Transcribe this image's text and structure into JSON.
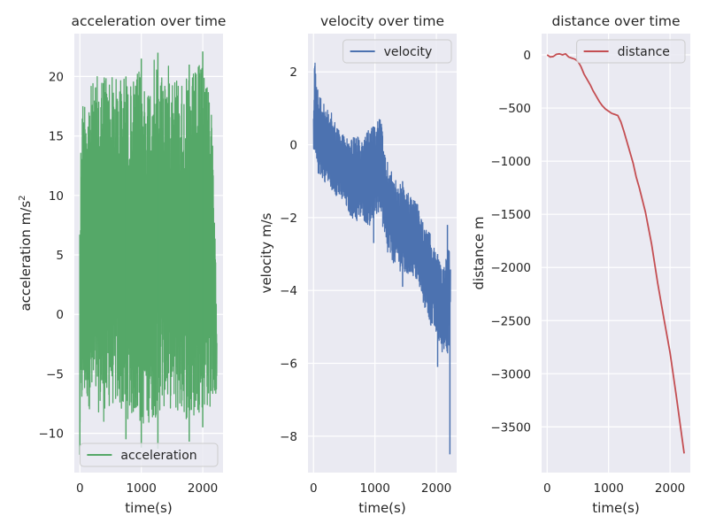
{
  "chart_data": [
    {
      "type": "line",
      "title": "acceleration over time",
      "xlabel": "time(s)",
      "ylabel": "acceleration m/s",
      "ylabel_superscript": "2",
      "xlim": [
        -90,
        2330
      ],
      "ylim": [
        -13.3,
        23.6
      ],
      "xticks": [
        0,
        1000,
        2000
      ],
      "xtick_labels": [
        "0",
        "1000",
        "2000"
      ],
      "yticks": [
        -10,
        -5,
        0,
        5,
        10,
        15,
        20
      ],
      "ytick_labels": [
        "−10",
        "−5",
        "0",
        "5",
        "10",
        "15",
        "20"
      ],
      "grid": true,
      "legend": "lower right",
      "series": [
        {
          "name": "acceleration",
          "color": "#55a868",
          "envelope": {
            "x": [
              0,
              20,
              50,
              100,
              200,
              300,
              400,
              500,
              600,
              700,
              800,
              900,
              1000,
              1100,
              1200,
              1300,
              1400,
              1500,
              1600,
              1700,
              1800,
              1900,
              2000,
              2100,
              2150,
              2180,
              2200,
              2230
            ],
            "upper": [
              6.7,
              18.5,
              19.0,
              19.6,
              20.0,
              20.8,
              21.5,
              21.0,
              20.5,
              21.0,
              19.8,
              20.6,
              21.5,
              20.0,
              22.1,
              21.6,
              21.3,
              21.9,
              20.8,
              20.3,
              20.6,
              21.3,
              22.1,
              21.0,
              16.8,
              11.0,
              7.0,
              0.0
            ],
            "lower": [
              -11.6,
              -9.6,
              -8.5,
              -8.0,
              -9.0,
              -8.8,
              -9.8,
              -8.2,
              -8.5,
              -9.0,
              -9.5,
              -9.2,
              -10.2,
              -9.8,
              -9.5,
              -8.9,
              -8.3,
              -8.7,
              -9.2,
              -9.0,
              -10.5,
              -9.0,
              -8.6,
              -8.6,
              -8.2,
              -7.5,
              -6.8,
              -7.3
            ]
          },
          "spikes": [
            {
              "x": 0,
              "low": -11.8,
              "high": 6.7
            },
            {
              "x": 750,
              "low": -10.5,
              "high": 20.0
            },
            {
              "x": 1000,
              "low": -11.2,
              "high": 21.5
            },
            {
              "x": 1270,
              "low": -11.3,
              "high": 22.0
            },
            {
              "x": 1780,
              "low": -10.7,
              "high": 21.0
            },
            {
              "x": 2000,
              "low": -9.5,
              "high": 22.1
            }
          ]
        }
      ]
    },
    {
      "type": "line",
      "title": "velocity over time",
      "xlabel": "time(s)",
      "ylabel": "velocity m/s",
      "xlim": [
        -90,
        2330
      ],
      "ylim": [
        -9.0,
        3.05
      ],
      "xticks": [
        0,
        1000,
        2000
      ],
      "xtick_labels": [
        "0",
        "1000",
        "2000"
      ],
      "yticks": [
        -8,
        -6,
        -4,
        -2,
        0,
        2
      ],
      "ytick_labels": [
        "−8",
        "−6",
        "−4",
        "−2",
        "0",
        "2"
      ],
      "grid": true,
      "legend": "upper right",
      "series": [
        {
          "name": "velocity",
          "color": "#4c72b0",
          "envelope": {
            "x": [
              0,
              20,
              40,
              100,
              200,
              300,
              400,
              500,
              600,
              700,
              800,
              900,
              1000,
              1050,
              1100,
              1150,
              1200,
              1300,
              1400,
              1500,
              1600,
              1700,
              1800,
              1900,
              2000,
              2100,
              2150,
              2200,
              2230
            ],
            "upper": [
              1.3,
              2.5,
              2.0,
              1.4,
              1.1,
              0.9,
              0.5,
              0.3,
              0.2,
              0.3,
              0.1,
              0.5,
              0.6,
              0.8,
              0.9,
              -0.2,
              -0.4,
              -0.8,
              -1.0,
              -1.2,
              -1.4,
              -1.6,
              -2.2,
              -2.4,
              -2.9,
              -3.4,
              -3.0,
              -2.4,
              -3.3
            ],
            "lower": [
              -0.5,
              -0.7,
              -0.8,
              -0.9,
              -1.1,
              -1.3,
              -1.5,
              -1.7,
              -2.0,
              -2.2,
              -2.1,
              -2.3,
              -2.1,
              -2.0,
              -1.9,
              -2.8,
              -3.1,
              -3.3,
              -3.5,
              -3.7,
              -3.6,
              -3.9,
              -4.5,
              -5.0,
              -5.3,
              -5.8,
              -5.6,
              -5.9,
              -4.5
            ]
          },
          "spikes": [
            {
              "x": 980,
              "low": -2.7,
              "high": 0.5
            },
            {
              "x": 1450,
              "low": -3.9,
              "high": -1.0
            },
            {
              "x": 2020,
              "low": -6.1,
              "high": -3.0
            },
            {
              "x": 2180,
              "low": -5.5,
              "high": -2.2
            },
            {
              "x": 2220,
              "low": -8.5,
              "high": -3.5
            }
          ]
        }
      ]
    },
    {
      "type": "line",
      "title": "distance over time",
      "xlabel": "time(s)",
      "ylabel": "distance m",
      "xlim": [
        -90,
        2330
      ],
      "ylim": [
        -3930,
        200
      ],
      "xticks": [
        0,
        1000,
        2000
      ],
      "xtick_labels": [
        "0",
        "1000",
        "2000"
      ],
      "yticks": [
        -3500,
        -3000,
        -2500,
        -2000,
        -1500,
        -1000,
        -500,
        0
      ],
      "ytick_labels": [
        "−3500",
        "−3000",
        "−2500",
        "−2000",
        "−1500",
        "−1000",
        "−500",
        "0"
      ],
      "grid": true,
      "legend": "upper right",
      "series": [
        {
          "name": "distance",
          "color": "#c44e52",
          "x": [
            0,
            50,
            100,
            150,
            200,
            250,
            300,
            350,
            400,
            450,
            500,
            550,
            600,
            650,
            700,
            750,
            800,
            850,
            900,
            950,
            1000,
            1050,
            1100,
            1150,
            1200,
            1250,
            1300,
            1350,
            1400,
            1450,
            1500,
            1600,
            1700,
            1800,
            1900,
            2000,
            2100,
            2230
          ],
          "y": [
            0,
            -20,
            -15,
            5,
            10,
            0,
            10,
            -20,
            -30,
            -40,
            -60,
            -110,
            -180,
            -230,
            -280,
            -340,
            -390,
            -440,
            -480,
            -510,
            -530,
            -550,
            -560,
            -570,
            -630,
            -720,
            -820,
            -920,
            -1020,
            -1150,
            -1250,
            -1480,
            -1780,
            -2150,
            -2480,
            -2800,
            -3200,
            -3750
          ]
        }
      ]
    }
  ]
}
